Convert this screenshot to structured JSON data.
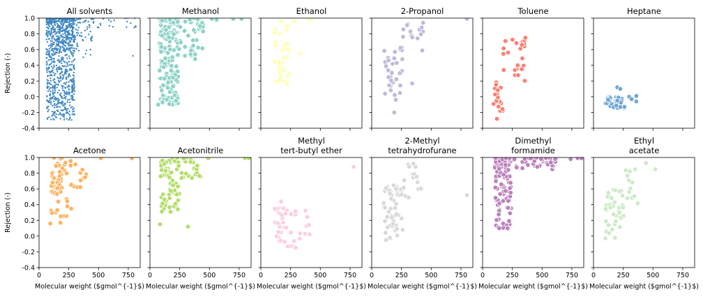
{
  "figure": {
    "ylabel": "Rejection (-)",
    "xlabel": "Molecular weight ($gmol^{-1}$)"
  },
  "chart_data": [
    {
      "type": "scatter",
      "title": [
        "All solvents"
      ],
      "color": "#3e87c2",
      "marker": "small",
      "xlim": [
        0,
        850
      ],
      "ylim": [
        -0.4,
        1.0
      ],
      "xticks": [
        0,
        250,
        500,
        750
      ],
      "yticks": [
        -0.4,
        -0.2,
        0.0,
        0.2,
        0.4,
        0.6,
        0.8,
        1.0
      ],
      "clusters": [
        {
          "x": [
            60,
            300
          ],
          "y": [
            -0.3,
            1.0
          ],
          "n": 950
        },
        {
          "x": [
            300,
            460
          ],
          "y": [
            0.5,
            1.0
          ],
          "n": 60
        },
        {
          "x": [
            460,
            820
          ],
          "y": [
            0.85,
            1.0
          ],
          "n": 18
        }
      ],
      "points": [
        [
          790,
          0.52
        ],
        [
          800,
          0.88
        ],
        [
          540,
          0.99
        ],
        [
          435,
          0.74
        ],
        [
          120,
          -0.28
        ],
        [
          180,
          -0.22
        ]
      ]
    },
    {
      "type": "scatter",
      "title": [
        "Methanol"
      ],
      "color": "#8dd3c7",
      "marker": "large",
      "xlim": [
        0,
        850
      ],
      "ylim": [
        -0.4,
        1.0
      ],
      "clusters": [
        {
          "x": [
            80,
            240
          ],
          "y": [
            -0.1,
            1.0
          ],
          "n": 170
        },
        {
          "x": [
            240,
            450
          ],
          "y": [
            0.5,
            1.0
          ],
          "n": 40
        }
      ],
      "points": [
        [
          70,
          -0.1
        ],
        [
          380,
          0.48
        ],
        [
          380,
          0.54
        ],
        [
          420,
          0.9
        ],
        [
          560,
          0.98
        ],
        [
          700,
          0.99
        ],
        [
          770,
          0.99
        ],
        [
          520,
          0.99
        ]
      ]
    },
    {
      "type": "scatter",
      "title": [
        "Ethanol"
      ],
      "color": "#ffffb3",
      "marker": "large",
      "xlim": [
        0,
        850
      ],
      "ylim": [
        -0.4,
        1.0
      ],
      "clusters": [
        {
          "x": [
            110,
            240
          ],
          "y": [
            0.12,
            0.98
          ],
          "n": 38
        }
      ],
      "points": [
        [
          330,
          0.55
        ],
        [
          400,
          0.99
        ],
        [
          420,
          0.99
        ],
        [
          280,
          0.96
        ]
      ]
    },
    {
      "type": "scatter",
      "title": [
        "2-Propanol"
      ],
      "color": "#bebada",
      "marker": "large",
      "xlim": [
        0,
        850
      ],
      "ylim": [
        -0.4,
        1.0
      ],
      "clusters": [
        {
          "x": [
            100,
            260
          ],
          "y": [
            -0.05,
            0.65
          ],
          "n": 32
        },
        {
          "x": [
            260,
            440
          ],
          "y": [
            0.55,
            0.98
          ],
          "n": 14
        }
      ],
      "points": [
        [
          190,
          -0.2
        ],
        [
          340,
          0.17
        ],
        [
          800,
          0.99
        ],
        [
          420,
          0.88
        ]
      ]
    },
    {
      "type": "scatter",
      "title": [
        "Toluene"
      ],
      "color": "#fb8072",
      "marker": "large",
      "xlim": [
        0,
        850
      ],
      "ylim": [
        -0.4,
        1.0
      ],
      "clusters": [
        {
          "x": [
            90,
            170
          ],
          "y": [
            -0.2,
            0.2
          ],
          "n": 22
        },
        {
          "x": [
            170,
            360
          ],
          "y": [
            0.2,
            0.75
          ],
          "n": 22
        }
      ],
      "points": [
        [
          120,
          -0.28
        ],
        [
          360,
          0.75
        ],
        [
          330,
          0.66
        ]
      ]
    },
    {
      "type": "scatter",
      "title": [
        "Heptane"
      ],
      "color": "#6fa7d4",
      "marker": "large",
      "xlim": [
        0,
        850
      ],
      "ylim": [
        -0.4,
        1.0
      ],
      "clusters": [
        {
          "x": [
            100,
            260
          ],
          "y": [
            -0.15,
            0.0
          ],
          "n": 38
        }
      ],
      "points": [
        [
          200,
          0.12
        ],
        [
          225,
          0.1
        ],
        [
          300,
          0.0
        ],
        [
          360,
          0.01
        ],
        [
          360,
          -0.06
        ],
        [
          320,
          -0.03
        ]
      ]
    },
    {
      "type": "scatter",
      "title": [
        "Acetone"
      ],
      "color": "#fdb462",
      "marker": "large",
      "xlim": [
        0,
        850
      ],
      "ylim": [
        -0.4,
        1.0
      ],
      "clusters": [
        {
          "x": [
            100,
            240
          ],
          "y": [
            0.25,
            1.0
          ],
          "n": 55
        },
        {
          "x": [
            240,
            400
          ],
          "y": [
            0.6,
            1.0
          ],
          "n": 15
        }
      ],
      "points": [
        [
          95,
          0.16
        ],
        [
          180,
          0.17
        ],
        [
          520,
          0.99
        ],
        [
          780,
          0.99
        ],
        [
          270,
          0.35
        ]
      ]
    },
    {
      "type": "scatter",
      "title": [
        "Acetonitrile"
      ],
      "color": "#b3de69",
      "marker": "large",
      "xlim": [
        0,
        850
      ],
      "ylim": [
        -0.4,
        1.0
      ],
      "clusters": [
        {
          "x": [
            90,
            250
          ],
          "y": [
            0.3,
            1.0
          ],
          "n": 65
        },
        {
          "x": [
            250,
            430
          ],
          "y": [
            0.7,
            1.0
          ],
          "n": 20
        }
      ],
      "points": [
        [
          85,
          0.15
        ],
        [
          320,
          0.12
        ],
        [
          490,
          0.99
        ],
        [
          800,
          0.99
        ],
        [
          830,
          0.99
        ]
      ]
    },
    {
      "type": "scatter",
      "title": [
        "Methyl",
        "tert-butyl ether"
      ],
      "color": "#fccde5",
      "marker": "large",
      "xlim": [
        0,
        850
      ],
      "ylim": [
        -0.4,
        1.0
      ],
      "clusters": [
        {
          "x": [
            100,
            420
          ],
          "y": [
            -0.15,
            0.38
          ],
          "n": 42
        }
      ],
      "points": [
        [
          170,
          0.44
        ],
        [
          780,
          0.88
        ]
      ]
    },
    {
      "type": "scatter",
      "title": [
        "2-Methyl",
        "tetrahydrofurane"
      ],
      "color": "#d9d9d9",
      "marker": "large",
      "xlim": [
        0,
        850
      ],
      "ylim": [
        -0.4,
        1.0
      ],
      "clusters": [
        {
          "x": [
            100,
            260
          ],
          "y": [
            -0.05,
            0.65
          ],
          "n": 50
        },
        {
          "x": [
            260,
            420
          ],
          "y": [
            0.45,
            0.95
          ],
          "n": 15
        }
      ],
      "points": [
        [
          800,
          0.52
        ],
        [
          350,
          0.92
        ],
        [
          120,
          -0.05
        ]
      ]
    },
    {
      "type": "scatter",
      "title": [
        "Dimethyl",
        "formamide"
      ],
      "color": "#bc80bd",
      "marker": "large",
      "xlim": [
        0,
        850
      ],
      "ylim": [
        -0.4,
        1.0
      ],
      "clusters": [
        {
          "x": [
            100,
            240
          ],
          "y": [
            0.1,
            1.0
          ],
          "n": 110
        },
        {
          "x": [
            240,
            620
          ],
          "y": [
            0.85,
            1.0
          ],
          "n": 35
        }
      ],
      "points": [
        [
          800,
          0.99
        ],
        [
          830,
          0.99
        ],
        [
          740,
          0.98
        ],
        [
          210,
          0.1
        ],
        [
          140,
          0.1
        ]
      ]
    },
    {
      "type": "scatter",
      "title": [
        "Ethyl",
        "acetate"
      ],
      "color": "#ccebc5",
      "marker": "large",
      "xlim": [
        0,
        850
      ],
      "ylim": [
        -0.4,
        1.0
      ],
      "clusters": [
        {
          "x": [
            100,
            260
          ],
          "y": [
            0.0,
            0.6
          ],
          "n": 38
        },
        {
          "x": [
            260,
            380
          ],
          "y": [
            0.4,
            0.85
          ],
          "n": 12
        }
      ],
      "points": [
        [
          440,
          0.93
        ],
        [
          520,
          0.85
        ],
        [
          100,
          -0.03
        ],
        [
          180,
          -0.02
        ],
        [
          350,
          0.85
        ]
      ]
    }
  ]
}
